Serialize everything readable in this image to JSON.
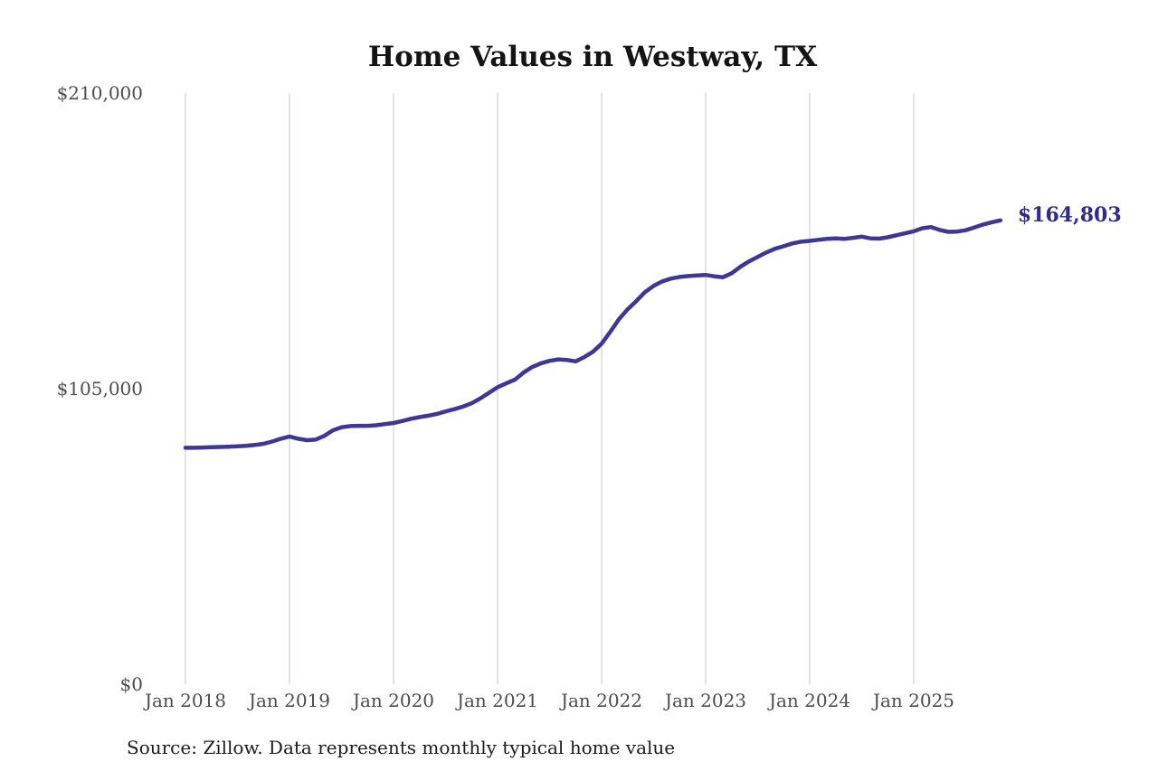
{
  "page": {
    "title": "Home Values in Westway, TX",
    "source_note": "Source: Zillow. Data represents monthly typical home value"
  },
  "chart_data": {
    "type": "line",
    "title": "Home Values in Westway, TX",
    "series_name": "Monthly typical home value",
    "unit": "USD",
    "grid": "vertical-only",
    "legend": "none",
    "line_color": "#3d3897",
    "end_label_color": "#2f2b8d",
    "grid_color": "#c9c9c9",
    "axis_text_color": "#4d4d4d",
    "ylim": [
      0,
      210000
    ],
    "xlabel": "",
    "ylabel": "",
    "y_ticks": [
      {
        "value": 0,
        "label": "$0"
      },
      {
        "value": 105000,
        "label": "$105,000"
      },
      {
        "value": 210000,
        "label": "$210,000"
      }
    ],
    "x_tick_labels": [
      "Jan 2018",
      "Jan 2019",
      "Jan 2020",
      "Jan 2021",
      "Jan 2022",
      "Jan 2023",
      "Jan 2024",
      "Jan 2025"
    ],
    "x_tick_month_index": [
      0,
      12,
      24,
      36,
      48,
      60,
      72,
      84
    ],
    "end_label": "$164,803",
    "end_value": 164803,
    "x": [
      "2018-01",
      "2018-02",
      "2018-03",
      "2018-04",
      "2018-05",
      "2018-06",
      "2018-07",
      "2018-08",
      "2018-09",
      "2018-10",
      "2018-11",
      "2018-12",
      "2019-01",
      "2019-02",
      "2019-03",
      "2019-04",
      "2019-05",
      "2019-06",
      "2019-07",
      "2019-08",
      "2019-09",
      "2019-10",
      "2019-11",
      "2019-12",
      "2020-01",
      "2020-02",
      "2020-03",
      "2020-04",
      "2020-05",
      "2020-06",
      "2020-07",
      "2020-08",
      "2020-09",
      "2020-10",
      "2020-11",
      "2020-12",
      "2021-01",
      "2021-02",
      "2021-03",
      "2021-04",
      "2021-05",
      "2021-06",
      "2021-07",
      "2021-08",
      "2021-09",
      "2021-10",
      "2021-11",
      "2021-12",
      "2022-01",
      "2022-02",
      "2022-03",
      "2022-04",
      "2022-05",
      "2022-06",
      "2022-07",
      "2022-08",
      "2022-09",
      "2022-10",
      "2022-11",
      "2022-12",
      "2023-01",
      "2023-02",
      "2023-03",
      "2023-04",
      "2023-05",
      "2023-06",
      "2023-07",
      "2023-08",
      "2023-09",
      "2023-10",
      "2023-11",
      "2023-12",
      "2024-01",
      "2024-02",
      "2024-03",
      "2024-04",
      "2024-05",
      "2024-06",
      "2024-07",
      "2024-08",
      "2024-09",
      "2024-10",
      "2024-11",
      "2024-12",
      "2025-01",
      "2025-02",
      "2025-03",
      "2025-04",
      "2025-05",
      "2025-06",
      "2025-07",
      "2025-08",
      "2025-09",
      "2025-10",
      "2025-11"
    ],
    "values": [
      84000,
      84000,
      84100,
      84200,
      84300,
      84400,
      84500,
      84700,
      85000,
      85400,
      86200,
      87200,
      88000,
      87200,
      86700,
      86900,
      88200,
      90200,
      91300,
      91700,
      91800,
      91800,
      92000,
      92400,
      92800,
      93500,
      94300,
      94900,
      95400,
      96000,
      96900,
      97700,
      98600,
      99800,
      101500,
      103500,
      105500,
      106900,
      108200,
      110700,
      112700,
      114000,
      114900,
      115400,
      115200,
      114700,
      116200,
      118100,
      121000,
      125200,
      129700,
      133200,
      136100,
      139300,
      141500,
      143100,
      144100,
      144700,
      145000,
      145200,
      145400,
      144900,
      144600,
      146000,
      148300,
      150200,
      151800,
      153400,
      154700,
      155600,
      156600,
      157200,
      157500,
      157900,
      158200,
      158400,
      158200,
      158600,
      159000,
      158400,
      158300,
      158800,
      159500,
      160200,
      160900,
      162000,
      162400,
      161400,
      160700,
      160800,
      161300,
      162300,
      163300,
      164100,
      164803
    ],
    "source": "Source: Zillow. Data represents monthly typical home value"
  }
}
